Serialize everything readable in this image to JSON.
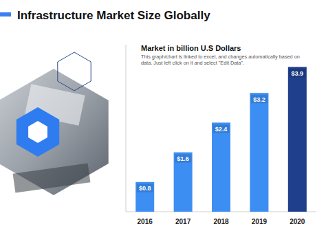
{
  "header": {
    "title": "Infrastructure Market Size Globally"
  },
  "chart_data": {
    "type": "bar",
    "title": "Market in billion U.S Dollars",
    "subtitle": "This graph/chart is linked to excel, and changes automatically based on data. Just left click on it and select \"Edit Data\".",
    "categories": [
      "2016",
      "2017",
      "2018",
      "2019",
      "2020"
    ],
    "values": [
      0.8,
      1.6,
      2.4,
      3.2,
      3.9
    ],
    "value_labels": [
      "$0.8",
      "$1.6",
      "$2.4",
      "$3.2",
      "$3.9"
    ],
    "colors": [
      "#3d8ef2",
      "#3d8ef2",
      "#3d8ef2",
      "#3d8ef2",
      "#1f3f8c"
    ],
    "ylim": [
      0,
      4.5
    ],
    "data_labels": true,
    "tick_labels": "x",
    "grid": false
  }
}
